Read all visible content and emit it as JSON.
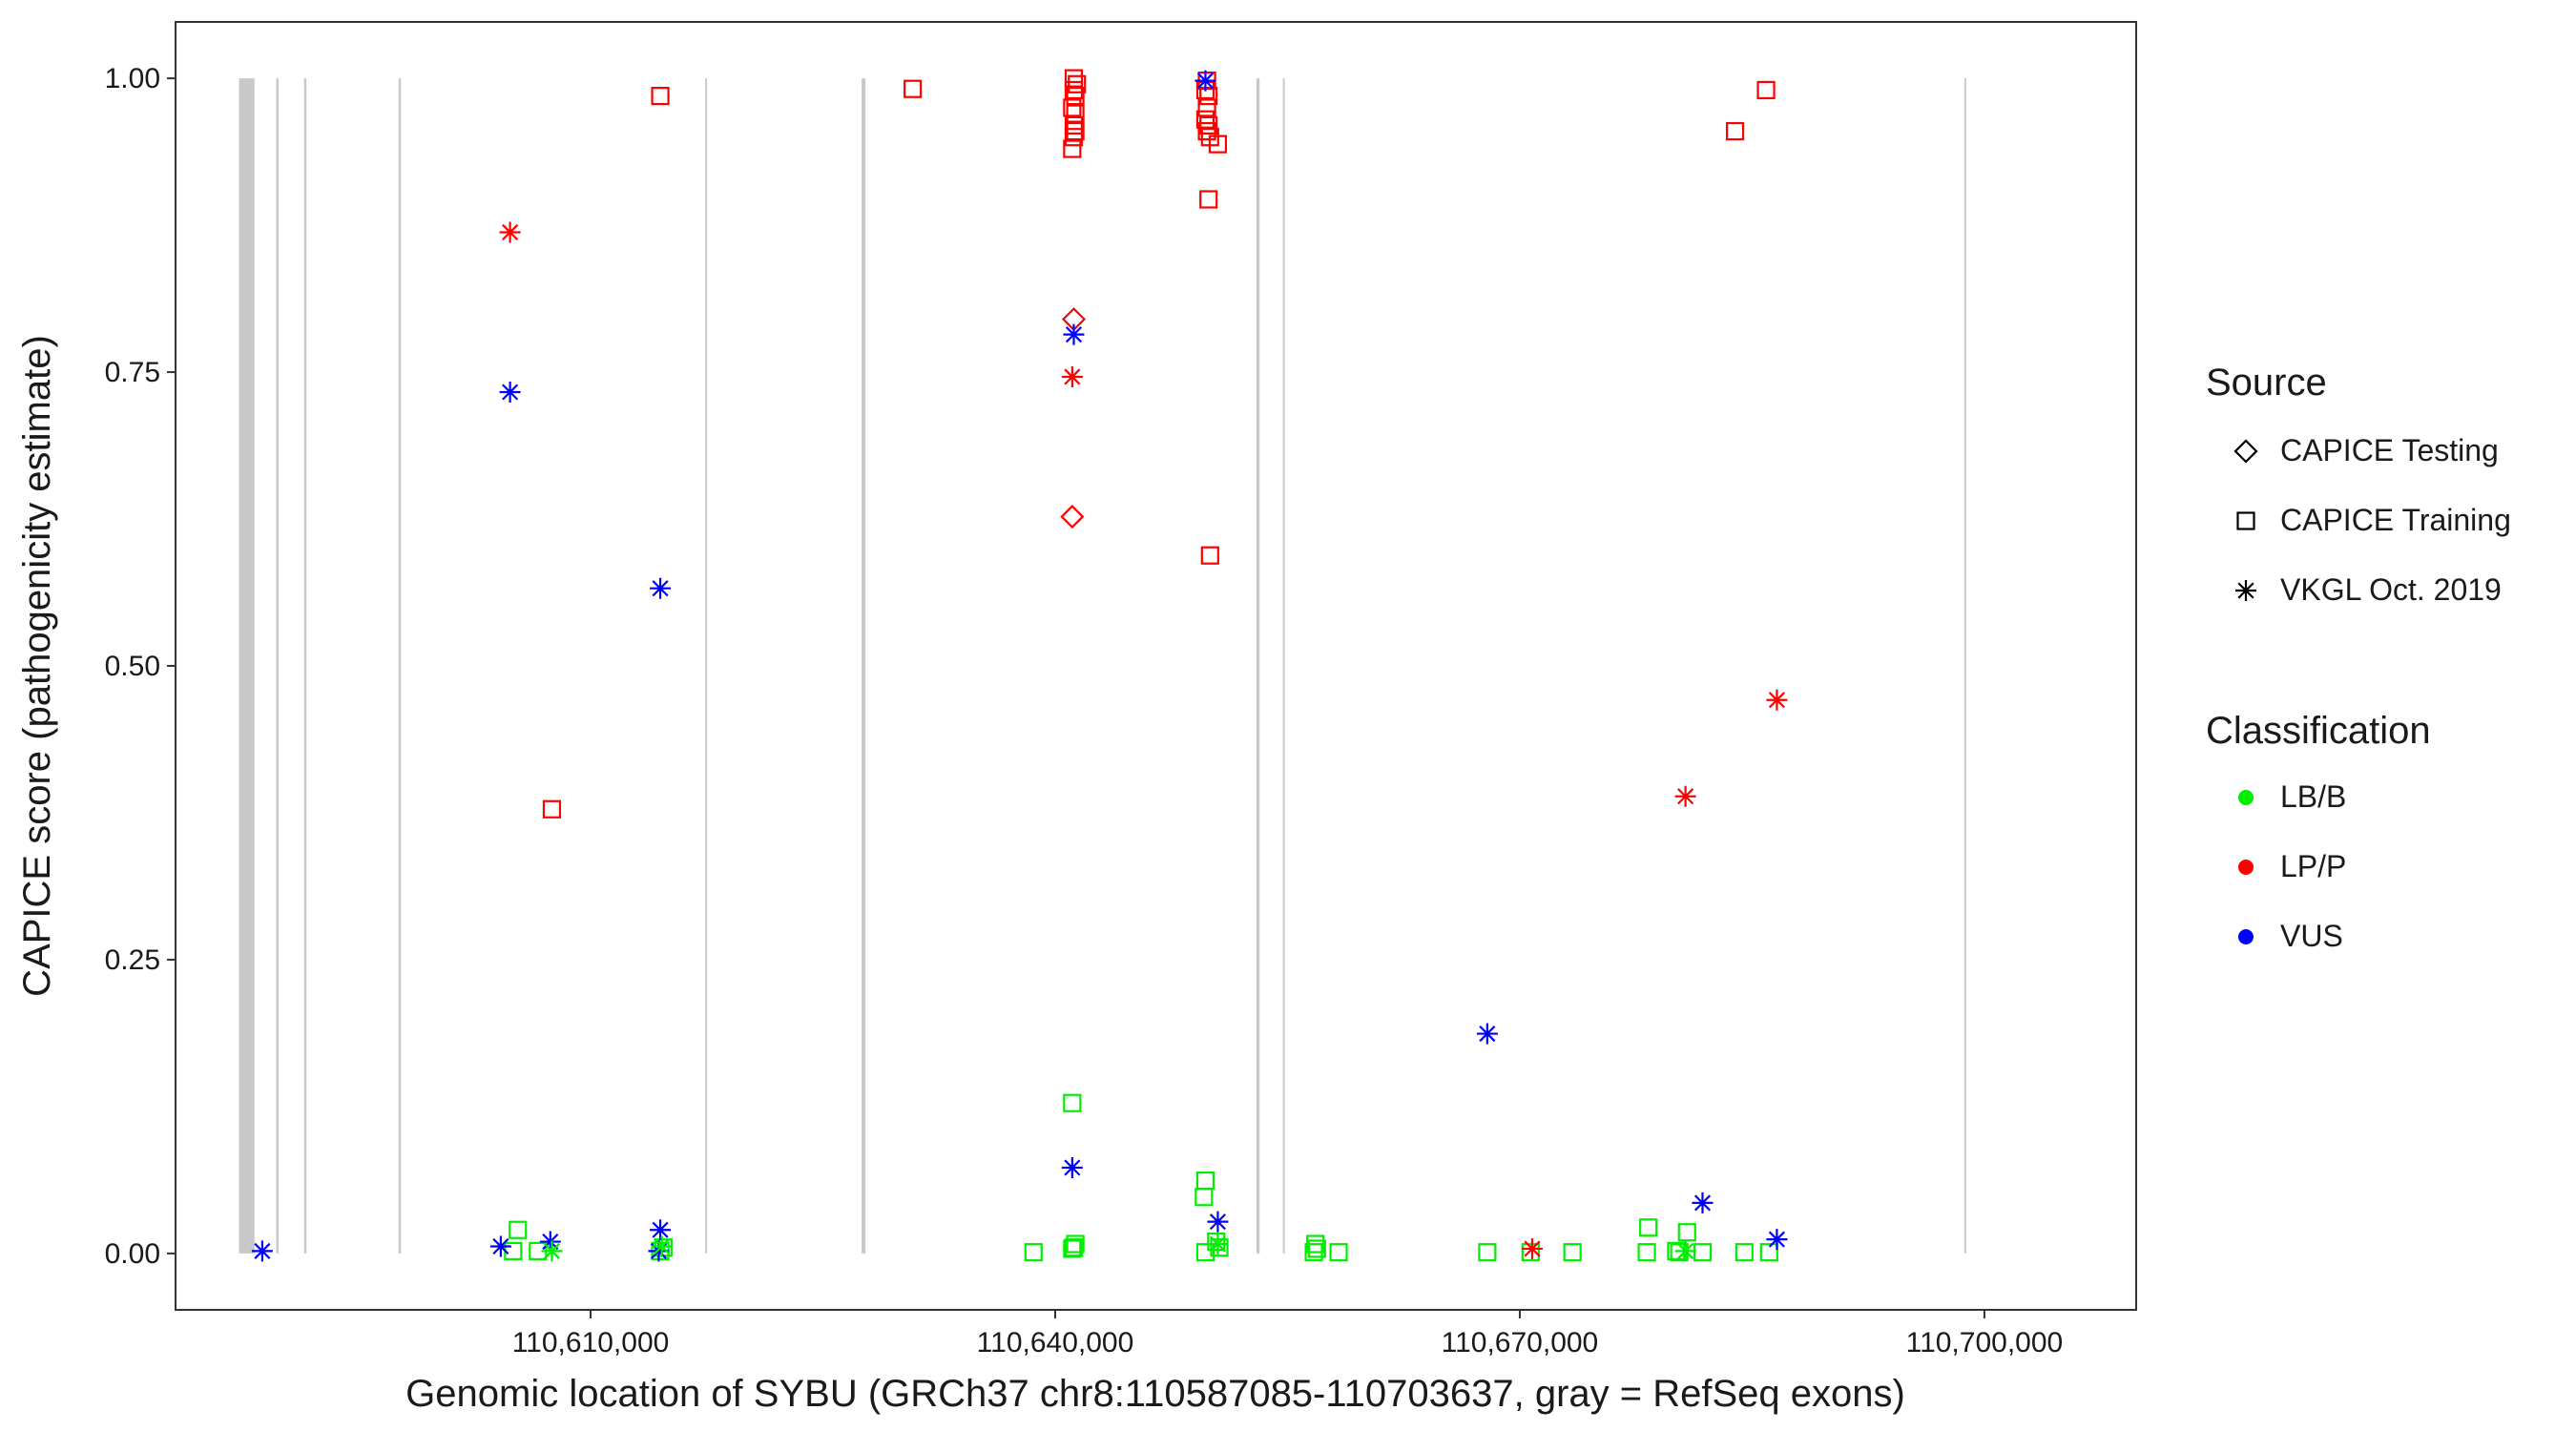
{
  "chart_data": {
    "type": "scatter",
    "xlabel": "Genomic location of SYBU (GRCh37 chr8:110587085-110703637, gray = RefSeq exons)",
    "ylabel": "CAPICE score (pathogenicity estimate)",
    "xlim": [
      110583200,
      110709800
    ],
    "ylim": [
      -0.048,
      1.048
    ],
    "x_ticks": [
      110610000,
      110640000,
      110670000,
      110700000
    ],
    "x_tick_labels": [
      "110,610,000",
      "110,640,000",
      "110,670,000",
      "110,700,000"
    ],
    "y_ticks": [
      0,
      0.25,
      0.5,
      0.75,
      1
    ],
    "y_tick_labels": [
      "0.00",
      "0.25",
      "0.50",
      "0.75",
      "1.00"
    ],
    "grid": false,
    "legend_position": "right",
    "legends": {
      "source": {
        "title": "Source",
        "items": [
          {
            "key": "testing",
            "label": "CAPICE Testing",
            "shape": "diamond"
          },
          {
            "key": "training",
            "label": "CAPICE Training",
            "shape": "square"
          },
          {
            "key": "vkgl",
            "label": "VKGL Oct. 2019",
            "shape": "asterisk"
          }
        ]
      },
      "classification": {
        "title": "Classification",
        "items": [
          {
            "key": "LB/B",
            "label": "LB/B",
            "color": "#00ee00"
          },
          {
            "key": "LP/P",
            "label": "LP/P",
            "color": "#ff0000"
          },
          {
            "key": "VUS",
            "label": "VUS",
            "color": "#0000ff"
          }
        ]
      }
    },
    "exons": [
      {
        "start": 110587300,
        "end": 110588300
      },
      {
        "start": 110589700,
        "end": 110589850
      },
      {
        "start": 110591500,
        "end": 110591650
      },
      {
        "start": 110597600,
        "end": 110597750
      },
      {
        "start": 110617400,
        "end": 110617480
      },
      {
        "start": 110627500,
        "end": 110627750
      },
      {
        "start": 110653000,
        "end": 110653200
      },
      {
        "start": 110654700,
        "end": 110654780
      },
      {
        "start": 110698700,
        "end": 110698780
      }
    ],
    "series": [
      {
        "source": "training",
        "classification": "LP/P",
        "points": [
          [
            110614500,
            0.985
          ],
          [
            110630800,
            0.991
          ],
          [
            110607500,
            0.378
          ],
          [
            110641200,
            1.0
          ],
          [
            110641400,
            0.995
          ],
          [
            110641200,
            0.99
          ],
          [
            110641300,
            0.985
          ],
          [
            110641100,
            0.975
          ],
          [
            110641300,
            0.97
          ],
          [
            110641200,
            0.96
          ],
          [
            110641300,
            0.955
          ],
          [
            110641200,
            0.95
          ],
          [
            110641100,
            0.94
          ],
          [
            110649800,
            0.998
          ],
          [
            110649700,
            0.99
          ],
          [
            110649900,
            0.985
          ],
          [
            110649800,
            0.975
          ],
          [
            110649700,
            0.965
          ],
          [
            110649900,
            0.96
          ],
          [
            110649800,
            0.955
          ],
          [
            110650000,
            0.95
          ],
          [
            110650500,
            0.944
          ],
          [
            110649900,
            0.897
          ],
          [
            110650000,
            0.594
          ],
          [
            110683900,
            0.955
          ],
          [
            110685900,
            0.99
          ]
        ]
      },
      {
        "source": "training",
        "classification": "LB/B",
        "points": [
          [
            110605000,
            0.002
          ],
          [
            110605300,
            0.02
          ],
          [
            110606600,
            0.002
          ],
          [
            110614500,
            0.002
          ],
          [
            110614700,
            0.005
          ],
          [
            110638600,
            0.001
          ],
          [
            110641100,
            0.128
          ],
          [
            110641200,
            0.005
          ],
          [
            110641100,
            0.004
          ],
          [
            110641300,
            0.008
          ],
          [
            110649700,
            0.062
          ],
          [
            110649600,
            0.048
          ],
          [
            110649700,
            0.001
          ],
          [
            110650600,
            0.005
          ],
          [
            110650400,
            0.01
          ],
          [
            110656700,
            0.001
          ],
          [
            110656900,
            0.004
          ],
          [
            110656800,
            0.008
          ],
          [
            110658300,
            0.001
          ],
          [
            110667900,
            0.001
          ],
          [
            110670700,
            0.001
          ],
          [
            110673400,
            0.001
          ],
          [
            110678300,
            0.022
          ],
          [
            110678200,
            0.001
          ],
          [
            110680100,
            0.002
          ],
          [
            110680300,
            0.001
          ],
          [
            110680800,
            0.018
          ],
          [
            110681800,
            0.001
          ],
          [
            110684500,
            0.001
          ],
          [
            110686100,
            0.001
          ]
        ]
      },
      {
        "source": "testing",
        "classification": "LP/P",
        "points": [
          [
            110641200,
            0.795
          ],
          [
            110641100,
            0.627
          ]
        ]
      },
      {
        "source": "vkgl",
        "classification": "LP/P",
        "points": [
          [
            110604800,
            0.869
          ],
          [
            110641100,
            0.746
          ],
          [
            110670800,
            0.004
          ],
          [
            110680700,
            0.389
          ],
          [
            110686600,
            0.471
          ]
        ]
      },
      {
        "source": "vkgl",
        "classification": "VUS",
        "points": [
          [
            110604800,
            0.733
          ],
          [
            110614500,
            0.566
          ],
          [
            110641200,
            0.782
          ],
          [
            110641100,
            0.073
          ],
          [
            110649700,
            0.998
          ],
          [
            110650500,
            0.027
          ],
          [
            110667900,
            0.187
          ],
          [
            110681800,
            0.043
          ],
          [
            110686600,
            0.012
          ],
          [
            110588800,
            0.002
          ],
          [
            110604200,
            0.006
          ],
          [
            110607400,
            0.01
          ],
          [
            110614500,
            0.02
          ],
          [
            110614400,
            0.002
          ]
        ]
      },
      {
        "source": "vkgl",
        "classification": "LB/B",
        "points": [
          [
            110607500,
            0.002
          ],
          [
            110614600,
            0.006
          ],
          [
            110650500,
            0.008
          ],
          [
            110680700,
            0.002
          ]
        ]
      }
    ]
  }
}
